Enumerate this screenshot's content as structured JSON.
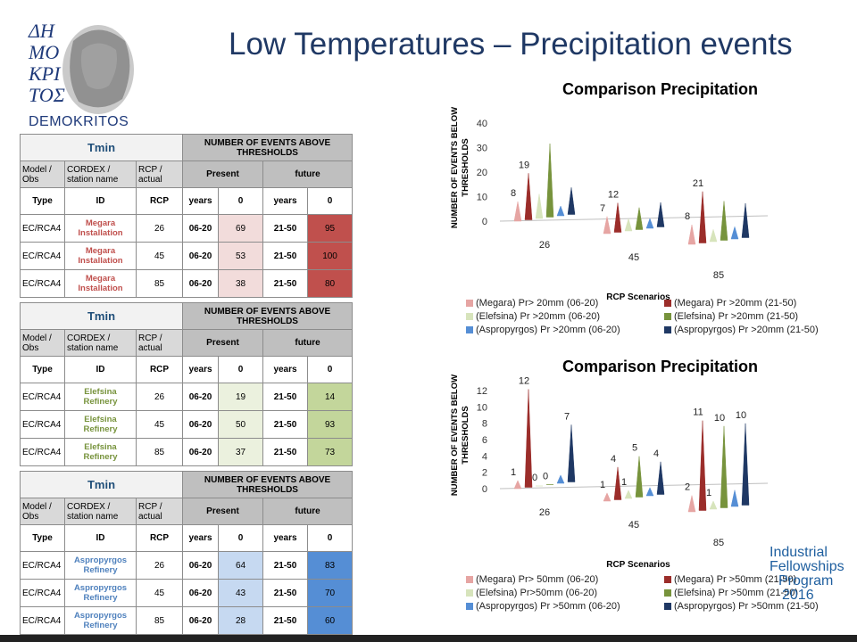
{
  "slide": {
    "title": "Low Temperatures – Precipitation events",
    "logo_text": "DEMOKRITOS",
    "logo_letters": "ΔΗΜΟΚΡΙΤΟΣ"
  },
  "tables": [
    {
      "tmin": "Tmin",
      "head_events": "NUMBER OF EVENTS ABOVE THRESHOLDS",
      "h_model": "Model / Obs",
      "h_cordex": "CORDEX / station name",
      "h_rcp": "RCP / actual",
      "h_present": "Present",
      "h_future": "future",
      "h_type": "Type",
      "h_id": "ID",
      "h_rcp2": "RCP",
      "h_years": "years",
      "h_zero": "0",
      "h_years2": "years",
      "h_zero2": "0",
      "id_color": "#c0504d",
      "present_color": "#f2dcdb",
      "future_color": "#c0504d",
      "rows": [
        {
          "type": "EC/RCA4",
          "id": "Megara Installation",
          "rcp": "26",
          "y1": "06-20",
          "v1": "69",
          "y2": "21-50",
          "v2": "95"
        },
        {
          "type": "EC/RCA4",
          "id": "Megara Installation",
          "rcp": "45",
          "y1": "06-20",
          "v1": "53",
          "y2": "21-50",
          "v2": "100"
        },
        {
          "type": "EC/RCA4",
          "id": "Megara Installation",
          "rcp": "85",
          "y1": "06-20",
          "v1": "38",
          "y2": "21-50",
          "v2": "80"
        }
      ]
    },
    {
      "tmin": "Tmin",
      "head_events": "NUMBER OF EVENTS ABOVE THRESHOLDS",
      "h_model": "Model / Obs",
      "h_cordex": "CORDEX / station name",
      "h_rcp": "RCP / actual",
      "h_present": "Present",
      "h_future": "future",
      "h_type": "Type",
      "h_id": "ID",
      "h_rcp2": "RCP",
      "h_years": "years",
      "h_zero": "0",
      "h_years2": "years",
      "h_zero2": "0",
      "id_color": "#77933c",
      "present_color": "#ebf1de",
      "future_color": "#c3d69b",
      "rows": [
        {
          "type": "EC/RCA4",
          "id": "Elefsina Refinery",
          "rcp": "26",
          "y1": "06-20",
          "v1": "19",
          "y2": "21-50",
          "v2": "14"
        },
        {
          "type": "EC/RCA4",
          "id": "Elefsina Refinery",
          "rcp": "45",
          "y1": "06-20",
          "v1": "50",
          "y2": "21-50",
          "v2": "93"
        },
        {
          "type": "EC/RCA4",
          "id": "Elefsina Refinery",
          "rcp": "85",
          "y1": "06-20",
          "v1": "37",
          "y2": "21-50",
          "v2": "73"
        }
      ]
    },
    {
      "tmin": "Tmin",
      "head_events": "NUMBER OF EVENTS ABOVE THRESHOLDS",
      "h_model": "Model / Obs",
      "h_cordex": "CORDEX / station name",
      "h_rcp": "RCP / actual",
      "h_present": "Present",
      "h_future": "future",
      "h_type": "Type",
      "h_id": "ID",
      "h_rcp2": "RCP",
      "h_years": "years",
      "h_zero": "0",
      "h_years2": "years",
      "h_zero2": "0",
      "id_color": "#4f81bd",
      "present_color": "#c6d9f1",
      "future_color": "#558ed5",
      "rows": [
        {
          "type": "EC/RCA4",
          "id": "Aspropyrgos Refinery",
          "rcp": "26",
          "y1": "06-20",
          "v1": "64",
          "y2": "21-50",
          "v2": "83"
        },
        {
          "type": "EC/RCA4",
          "id": "Aspropyrgos Refinery",
          "rcp": "45",
          "y1": "06-20",
          "v1": "43",
          "y2": "21-50",
          "v2": "70"
        },
        {
          "type": "EC/RCA4",
          "id": "Aspropyrgos Refinery",
          "rcp": "85",
          "y1": "06-20",
          "v1": "28",
          "y2": "21-50",
          "v2": "60"
        }
      ]
    }
  ],
  "chart_data": [
    {
      "type": "bar",
      "title": "Comparison Precipitation",
      "ylabel": "NUMBER OF EVENTS BELOW THRESHOLDS",
      "xlabel": "RCP Scenarios",
      "categories": [
        "26",
        "45",
        "85"
      ],
      "ylim": [
        0,
        40
      ],
      "yticks": [
        "0",
        "10",
        "20",
        "30",
        "40"
      ],
      "series": [
        {
          "name": "(Megara) Pr> 20mm (06-20)",
          "color": "#e6a5a3",
          "values": [
            8,
            7,
            8
          ],
          "label": true
        },
        {
          "name": "(Megara) Pr  >20mm (21-50)",
          "color": "#9b2d2a",
          "values": [
            19,
            12,
            21
          ],
          "label": true
        },
        {
          "name": "(Elefsina) Pr >20mm (06-20)",
          "color": "#d7e4bc",
          "values": [
            10,
            5,
            5
          ],
          "label": false
        },
        {
          "name": "(Elefsina) Pr >20mm (21-50)",
          "color": "#77933c",
          "values": [
            30,
            9,
            16
          ],
          "label": false
        },
        {
          "name": "(Aspropyrgos) Pr >20mm (06-20)",
          "color": "#558ed5",
          "values": [
            4,
            4,
            5
          ],
          "label": false
        },
        {
          "name": "(Aspropyrgos) Pr >20mm (21-50)",
          "color": "#1f3864",
          "values": [
            11,
            10,
            14
          ],
          "label": false
        }
      ]
    },
    {
      "type": "bar",
      "title": "Comparison Precipitation",
      "ylabel": "NUMBER OF EVENTS BELOW THRESHOLDS",
      "xlabel": "RCP Scenarios",
      "categories": [
        "26",
        "45",
        "85"
      ],
      "ylim": [
        0,
        12
      ],
      "yticks": [
        "0",
        "2",
        "4",
        "6",
        "8",
        "10",
        "12"
      ],
      "series": [
        {
          "name": "(Megara) Pr> 50mm (06-20)",
          "color": "#e6a5a3",
          "values": [
            1,
            1,
            2
          ],
          "label": true
        },
        {
          "name": "(Megara) Pr  >50mm (21-50)",
          "color": "#9b2d2a",
          "values": [
            12,
            4,
            11
          ],
          "label": true
        },
        {
          "name": "(Elefsina) Pr>50mm (06-20)",
          "color": "#d7e4bc",
          "values": [
            0,
            1,
            1
          ],
          "label": true
        },
        {
          "name": "(Elefsina) Pr  >50mm (21-50)",
          "color": "#77933c",
          "values": [
            0,
            5,
            10
          ],
          "label": true
        },
        {
          "name": "(Aspropyrgos) Pr >50mm (06-20)",
          "color": "#558ed5",
          "values": [
            1,
            1,
            2
          ],
          "label": false
        },
        {
          "name": "(Aspropyrgos) Pr >50mm (21-50)",
          "color": "#1f3864",
          "values": [
            7,
            4,
            10
          ],
          "label": true
        }
      ]
    }
  ],
  "footer": {
    "ifp_line1": "Industrial",
    "ifp_line2": "Fellowships",
    "ifp_line3": "Program",
    "ifp_year": "2016"
  }
}
